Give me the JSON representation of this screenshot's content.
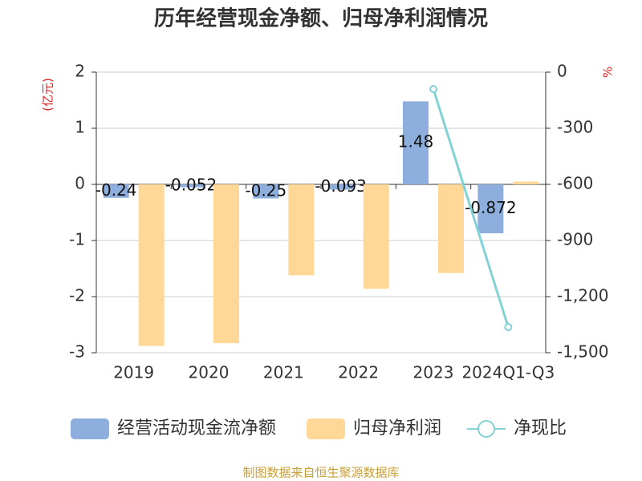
{
  "chart_data": {
    "type": "bar",
    "title": "历年经营现金净额、归母净利润情况",
    "source": "制图数据来自恒生聚源数据库",
    "ylabel": "(亿元)",
    "y2label": "%",
    "categories": [
      "2019",
      "2020",
      "2021",
      "2022",
      "2023",
      "2024Q1-Q3"
    ],
    "series": [
      {
        "name": "经营活动现金流净额",
        "color": "#8eaedd",
        "type": "bar",
        "values": [
          -0.24,
          -0.052,
          -0.25,
          -0.093,
          1.48,
          -0.872
        ]
      },
      {
        "name": "归母净利润",
        "color": "#ffd898",
        "type": "bar",
        "values": [
          -2.88,
          -2.83,
          -1.62,
          -1.86,
          -1.58,
          0.05
        ]
      },
      {
        "name": "净现比",
        "color": "#83d2d5",
        "type": "line",
        "axis": "y2",
        "values": [
          null,
          null,
          null,
          null,
          -90,
          -1363
        ]
      }
    ],
    "ylim": [
      -3,
      2
    ],
    "yticks": [
      -3,
      -2,
      -1,
      0,
      1,
      2
    ],
    "y2lim": [
      -1500,
      0
    ],
    "y2ticks": [
      {
        "value": -1500,
        "label": "-1,500"
      },
      {
        "value": -1200,
        "label": "-1,200"
      },
      -900,
      -600,
      -300,
      0
    ],
    "grid": true
  }
}
